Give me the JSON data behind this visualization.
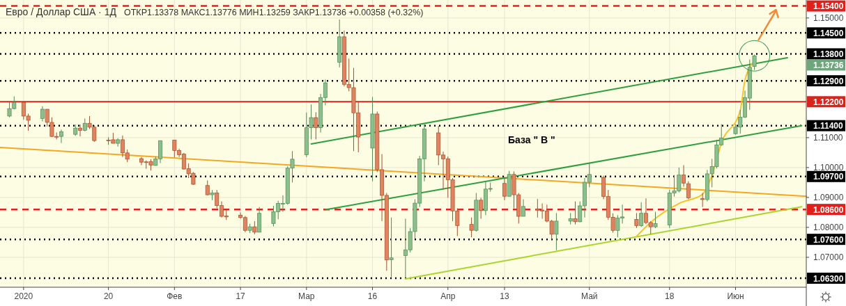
{
  "chart_data": {
    "type": "candlestick",
    "title": "Евро / Доллар США · 1Д",
    "subtitle": "ОТКР1.13378 МАКС1.13776 МИН1.13259 ЗАКР1.13736 +0.00358 (+0.32%)",
    "x": [
      "2019-12-30",
      "2019-12-31",
      "2020-01-02",
      "2020-01-03",
      "2020-01-06",
      "2020-01-07",
      "2020-01-08",
      "2020-01-09",
      "2020-01-10",
      "2020-01-13",
      "2020-01-14",
      "2020-01-15",
      "2020-01-16",
      "2020-01-17",
      "2020-01-20",
      "2020-01-21",
      "2020-01-22",
      "2020-01-23",
      "2020-01-24",
      "2020-01-27",
      "2020-01-28",
      "2020-01-29",
      "2020-01-30",
      "2020-01-31",
      "2020-02-03",
      "2020-02-04",
      "2020-02-05",
      "2020-02-06",
      "2020-02-07",
      "2020-02-10",
      "2020-02-11",
      "2020-02-12",
      "2020-02-13",
      "2020-02-14",
      "2020-02-17",
      "2020-02-18",
      "2020-02-19",
      "2020-02-20",
      "2020-02-21",
      "2020-02-24",
      "2020-02-25",
      "2020-02-26",
      "2020-02-27",
      "2020-02-28",
      "2020-03-02",
      "2020-03-03",
      "2020-03-04",
      "2020-03-05",
      "2020-03-06",
      "2020-03-09",
      "2020-03-10",
      "2020-03-11",
      "2020-03-12",
      "2020-03-13",
      "2020-03-16",
      "2020-03-17",
      "2020-03-18",
      "2020-03-19",
      "2020-03-20",
      "2020-03-23",
      "2020-03-24",
      "2020-03-25",
      "2020-03-26",
      "2020-03-27",
      "2020-03-30",
      "2020-03-31",
      "2020-04-01",
      "2020-04-02",
      "2020-04-03",
      "2020-04-06",
      "2020-04-07",
      "2020-04-08",
      "2020-04-09",
      "2020-04-10",
      "2020-04-13",
      "2020-04-14",
      "2020-04-15",
      "2020-04-16",
      "2020-04-17",
      "2020-04-20",
      "2020-04-21",
      "2020-04-22",
      "2020-04-23",
      "2020-04-24",
      "2020-04-27",
      "2020-04-28",
      "2020-04-29",
      "2020-04-30",
      "2020-05-01",
      "2020-05-04",
      "2020-05-05",
      "2020-05-06",
      "2020-05-07",
      "2020-05-08",
      "2020-05-11",
      "2020-05-12",
      "2020-05-13",
      "2020-05-14",
      "2020-05-15",
      "2020-05-18",
      "2020-05-19",
      "2020-05-20",
      "2020-05-21",
      "2020-05-22",
      "2020-05-25",
      "2020-05-26",
      "2020-05-27",
      "2020-05-28",
      "2020-05-29",
      "2020-06-01",
      "2020-06-02",
      "2020-06-03",
      "2020-06-04",
      "2020-06-05"
    ],
    "ohlc": [
      [
        1.1172,
        1.1218,
        1.1168,
        1.1197
      ],
      [
        1.1197,
        1.1238,
        1.1195,
        1.1218
      ],
      [
        1.1218,
        1.122,
        1.116,
        1.1172
      ],
      [
        1.1172,
        1.118,
        1.1123,
        1.1158
      ],
      [
        1.1164,
        1.1205,
        1.1154,
        1.1195
      ],
      [
        1.1195,
        1.1195,
        1.1137,
        1.1151
      ],
      [
        1.1151,
        1.1168,
        1.1102,
        1.1104
      ],
      [
        1.1104,
        1.1117,
        1.1094,
        1.1102
      ],
      [
        1.1104,
        1.1127,
        1.1082,
        1.112
      ],
      [
        1.1111,
        1.1144,
        1.1106,
        1.1132
      ],
      [
        1.1132,
        1.1144,
        1.1104,
        1.1124
      ],
      [
        1.1124,
        1.1164,
        1.1121,
        1.1148
      ],
      [
        1.1148,
        1.1172,
        1.1129,
        1.1135
      ],
      [
        1.1135,
        1.1141,
        1.1086,
        1.109
      ],
      [
        1.1092,
        1.1101,
        1.1076,
        1.109
      ],
      [
        1.1093,
        1.1116,
        1.1081,
        1.1081
      ],
      [
        1.1081,
        1.1098,
        1.107,
        1.1093
      ],
      [
        1.1093,
        1.1107,
        1.1035,
        1.1049
      ],
      [
        1.1049,
        1.106,
        1.1018,
        1.1028
      ],
      [
        1.103,
        1.1035,
        1.1008,
        1.1018
      ],
      [
        1.1019,
        1.1024,
        1.0996,
        1.1017
      ],
      [
        1.102,
        1.1028,
        1.099,
        1.1008
      ],
      [
        1.1007,
        1.1037,
        1.1006,
        1.1029
      ],
      [
        1.1029,
        1.109,
        1.1015,
        1.109
      ],
      [
        1.1092,
        1.1092,
        1.1034,
        1.1057
      ],
      [
        1.1057,
        1.1063,
        1.1035,
        1.1043
      ],
      [
        1.1045,
        1.1049,
        1.0993,
        1.0995
      ],
      [
        1.0996,
        1.1014,
        1.0965,
        1.0979
      ],
      [
        1.0981,
        1.0985,
        1.0942,
        1.0944
      ],
      [
        1.094,
        1.0957,
        1.0907,
        1.0909
      ],
      [
        1.0909,
        1.0925,
        1.0891,
        1.0915
      ],
      [
        1.0915,
        1.0925,
        1.0864,
        1.0873
      ],
      [
        1.0873,
        1.0887,
        1.0833,
        1.0837
      ],
      [
        1.0838,
        1.086,
        1.0825,
        1.0835
      ],
      [
        1.0841,
        1.085,
        1.0829,
        1.0833
      ],
      [
        1.0833,
        1.0838,
        1.0784,
        1.079
      ],
      [
        1.079,
        1.0812,
        1.0781,
        1.0802
      ],
      [
        1.0802,
        1.0821,
        1.0777,
        1.0784
      ],
      [
        1.0784,
        1.0868,
        1.0784,
        1.0847
      ],
      [
        1.0813,
        1.0872,
        1.0803,
        1.0852
      ],
      [
        1.0852,
        1.0889,
        1.0827,
        1.088
      ],
      [
        1.0879,
        1.0907,
        1.0852,
        1.088
      ],
      [
        1.088,
        1.1004,
        1.0876,
        1.0998
      ],
      [
        1.0998,
        1.1055,
        1.095,
        1.1028
      ],
      [
        1.1043,
        1.1184,
        1.1035,
        1.1133
      ],
      [
        1.1133,
        1.1211,
        1.1094,
        1.1167
      ],
      [
        1.1167,
        1.1185,
        1.1094,
        1.1133
      ],
      [
        1.1133,
        1.1246,
        1.1117,
        1.1234
      ],
      [
        1.1234,
        1.1294,
        1.1208,
        1.1283
      ],
      [
        1.1352,
        1.1495,
        1.1335,
        1.1437
      ],
      [
        1.1437,
        1.1458,
        1.1271,
        1.1278
      ],
      [
        1.1278,
        1.1364,
        1.1255,
        1.1267
      ],
      [
        1.1267,
        1.1333,
        1.1055,
        1.1183
      ],
      [
        1.1183,
        1.1222,
        1.1051,
        1.1102
      ],
      [
        1.1065,
        1.1236,
        1.0954,
        1.1179
      ],
      [
        1.1179,
        1.1187,
        1.0985,
        1.0993
      ],
      [
        1.0993,
        1.1045,
        1.0821,
        1.0907
      ],
      [
        1.0907,
        1.0915,
        1.0655,
        1.0691
      ],
      [
        1.0692,
        1.0833,
        1.0634,
        1.0698
      ],
      [
        1.0706,
        1.0829,
        1.063,
        1.0725
      ],
      [
        1.0725,
        1.0798,
        1.0716,
        1.0786
      ],
      [
        1.0786,
        1.0894,
        1.0763,
        1.0881
      ],
      [
        1.0881,
        1.1039,
        1.0868,
        1.1029
      ],
      [
        1.1029,
        1.1145,
        1.0954,
        1.1129
      ],
      [
        1.1116,
        1.1139,
        1.1008,
        1.1042
      ],
      [
        1.1042,
        1.1053,
        1.0926,
        1.1029
      ],
      [
        1.1029,
        1.1037,
        1.0899,
        1.0959
      ],
      [
        1.0959,
        1.0965,
        1.0821,
        1.0855
      ],
      [
        1.0855,
        1.0864,
        1.0771,
        1.0806
      ],
      [
        1.081,
        1.0833,
        1.0767,
        1.079
      ],
      [
        1.079,
        1.0915,
        1.0786,
        1.0891
      ],
      [
        1.0891,
        1.0899,
        1.0829,
        1.0856
      ],
      [
        1.0856,
        1.0954,
        1.0841,
        1.0928
      ],
      [
        1.0928,
        1.095,
        1.0919,
        1.093
      ],
      [
        1.0947,
        1.0969,
        1.0891,
        1.0904
      ],
      [
        1.0904,
        1.0989,
        1.0903,
        1.0977
      ],
      [
        1.0977,
        1.0987,
        1.0864,
        1.0909
      ],
      [
        1.0909,
        1.0915,
        1.0813,
        1.0837
      ],
      [
        1.0837,
        1.0894,
        1.0837,
        1.087
      ],
      [
        1.0862,
        1.0895,
        1.0833,
        1.0858
      ],
      [
        1.0858,
        1.088,
        1.0829,
        1.0855
      ],
      [
        1.0855,
        1.0876,
        1.0817,
        1.0821
      ],
      [
        1.0821,
        1.0825,
        1.0759,
        1.0777
      ],
      [
        1.0777,
        1.0848,
        1.0724,
        1.0821
      ],
      [
        1.0821,
        1.0848,
        1.081,
        1.0829
      ],
      [
        1.0829,
        1.0887,
        1.081,
        1.0819
      ],
      [
        1.0819,
        1.0887,
        1.0817,
        1.0872
      ],
      [
        1.0872,
        1.0965,
        1.0833,
        1.0951
      ],
      [
        1.0951,
        1.1016,
        1.0934,
        1.0977
      ],
      [
        1.0967,
        1.0973,
        1.0894,
        1.0903
      ],
      [
        1.0903,
        1.0925,
        1.0825,
        1.0834
      ],
      [
        1.0834,
        1.0847,
        1.0782,
        1.079
      ],
      [
        1.079,
        1.0841,
        1.0767,
        1.0831
      ],
      [
        1.0831,
        1.0876,
        1.0813,
        1.0835
      ],
      [
        1.0827,
        1.0848,
        1.0798,
        1.0806
      ],
      [
        1.0806,
        1.0884,
        1.0802,
        1.0847
      ],
      [
        1.0847,
        1.0897,
        1.0811,
        1.0816
      ],
      [
        1.0816,
        1.0821,
        1.0778,
        1.0802
      ],
      [
        1.0802,
        1.0852,
        1.0798,
        1.0813
      ],
      [
        1.0808,
        1.0926,
        1.0798,
        1.0915
      ],
      [
        1.0915,
        1.0975,
        1.0903,
        1.0922
      ],
      [
        1.0922,
        1.1,
        1.0917,
        1.0975
      ],
      [
        1.0975,
        1.1008,
        1.0936,
        1.0948
      ],
      [
        1.0946,
        1.0954,
        1.0894,
        1.0899
      ],
      [
        1.0896,
        1.0915,
        1.0868,
        1.0893
      ],
      [
        1.0893,
        1.0992,
        1.0887,
        1.0979
      ],
      [
        1.0979,
        1.1029,
        1.0934,
        1.1003
      ],
      [
        1.1003,
        1.1092,
        1.0997,
        1.1076
      ],
      [
        1.1076,
        1.1145,
        1.1073,
        1.1099
      ],
      [
        1.1113,
        1.1145,
        1.111,
        1.1135
      ],
      [
        1.1135,
        1.1193,
        1.1113,
        1.1168
      ],
      [
        1.1168,
        1.1257,
        1.1166,
        1.1234
      ],
      [
        1.1232,
        1.1361,
        1.1193,
        1.1335
      ],
      [
        1.13378,
        1.13776,
        1.13259,
        1.13736
      ]
    ],
    "series": [
      {
        "type": "line",
        "color": "#f5a623",
        "x": [
          "2019-12-28",
          "2020-06-16"
        ],
        "values": [
          1.1067,
          1.0904
        ]
      },
      {
        "type": "line",
        "color": "#2e9e3e",
        "x": [
          "2020-03-03",
          "2020-06-12"
        ],
        "values": [
          1.1079,
          1.1367
        ]
      },
      {
        "type": "line",
        "color": "#2e9e3e",
        "x": [
          "2020-03-06",
          "2020-06-15"
        ],
        "values": [
          1.0859,
          1.114
        ]
      },
      {
        "type": "line",
        "color": "#a8d62a",
        "x": [
          "2020-03-23",
          "2020-06-15"
        ],
        "values": [
          1.0628,
          1.0869
        ]
      },
      {
        "type": "line",
        "color": "#f7c325",
        "x": [
          "2020-05-11",
          "2020-05-14",
          "2020-05-20",
          "2020-05-25",
          "2020-05-27",
          "2020-05-29",
          "2020-06-02",
          "2020-06-03",
          "2020-06-05"
        ],
        "values": [
          1.077,
          1.0817,
          1.088,
          1.0911,
          1.0974,
          1.1082,
          1.1191,
          1.1292,
          1.1355
        ]
      }
    ],
    "xlim": [
      "2019-12-28",
      "2020-06-16"
    ],
    "xticks": [
      {
        "value": "2020-01-02",
        "label": "2020"
      },
      {
        "value": "2020-01-20",
        "label": "20"
      },
      {
        "value": "2020-02-03",
        "label": "Фев"
      },
      {
        "value": "2020-02-17",
        "label": "17"
      },
      {
        "value": "2020-03-02",
        "label": "Мар"
      },
      {
        "value": "2020-03-16",
        "label": "16"
      },
      {
        "value": "2020-04-01",
        "label": "Апр"
      },
      {
        "value": "2020-04-13",
        "label": "13"
      },
      {
        "value": "2020-05-01",
        "label": "Май"
      },
      {
        "value": "2020-05-18",
        "label": "18"
      },
      {
        "value": "2020-06-01",
        "label": "Июн"
      }
    ],
    "ylim": [
      1.06,
      1.156
    ],
    "yticks": [
      {
        "value": 1.07,
        "label": "1.07000"
      },
      {
        "value": 1.08,
        "label": "1.08000"
      },
      {
        "value": 1.09,
        "label": "1.09000"
      },
      {
        "value": 1.1,
        "label": "1.10000"
      },
      {
        "value": 1.11,
        "label": "1.11000"
      },
      {
        "value": 1.15,
        "label": "1.15000"
      }
    ],
    "ref_lines": [
      {
        "axis": "y",
        "value": 1.154,
        "label": "1.15400",
        "color": "#e0201a",
        "line_style": "dashed"
      },
      {
        "axis": "y",
        "value": 1.145,
        "label": "1.14500",
        "color": "#000000",
        "line_style": "dotted"
      },
      {
        "axis": "y",
        "value": 1.138,
        "label": "1.13800",
        "color": "#000000",
        "line_style": "dotted"
      },
      {
        "axis": "y",
        "value": 1.129,
        "label": "1.12900",
        "color": "#000000",
        "line_style": "dotted"
      },
      {
        "axis": "y",
        "value": 1.122,
        "label": "1.12200",
        "color": "#d8241c",
        "line_style": "solid"
      },
      {
        "axis": "y",
        "value": 1.114,
        "label": "1.11400",
        "color": "#000000",
        "line_style": "dotted"
      },
      {
        "axis": "y",
        "value": 1.097,
        "label": "1.09700",
        "color": "#000000",
        "line_style": "dotted"
      },
      {
        "axis": "y",
        "value": 1.086,
        "label": "1.08600",
        "color": "#e0201a",
        "line_style": "dashed"
      },
      {
        "axis": "y",
        "value": 1.076,
        "label": "1.07600",
        "color": "#000000",
        "line_style": "dotted"
      },
      {
        "axis": "y",
        "value": 1.063,
        "label": "1.06300",
        "color": "#000000",
        "line_style": "dotted"
      }
    ],
    "annotations": [
      "База \" В \"",
      "1.13736"
    ],
    "grid": true
  }
}
